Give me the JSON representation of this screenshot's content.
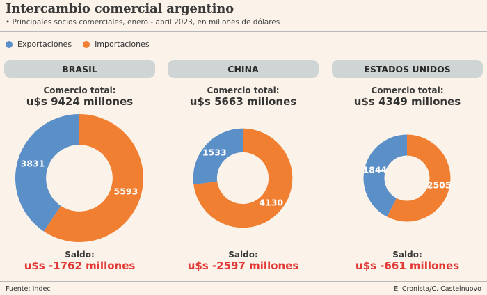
{
  "title": "Intercambio comercial argentino",
  "subtitle": "• Principales socios comerciales, enero - abril 2023, en millones de dólares",
  "colors": {
    "export": "#5b8fc7",
    "import": "#f07f32",
    "saldo": "#e23a36"
  },
  "chart_data": {
    "type": "pie",
    "variant": "donut",
    "legend": [
      "Exportaciones",
      "Importaciones"
    ],
    "total_label": "Comercio total:",
    "saldo_label": "Saldo:",
    "unit": "millones de dólares",
    "partners": [
      {
        "name": "BRASIL",
        "total": "u$s 9424 millones",
        "exportaciones": 3831,
        "importaciones": 5593,
        "saldo": "u$s -1762 millones"
      },
      {
        "name": "CHINA",
        "total": "u$s 5663 millones",
        "exportaciones": 1533,
        "importaciones": 4130,
        "saldo": "u$s -2597 millones"
      },
      {
        "name": "ESTADOS UNIDOS",
        "total": "u$s 4349 millones",
        "exportaciones": 1844,
        "importaciones": 2505,
        "saldo": "u$s -661 millones"
      }
    ]
  },
  "footer": {
    "source": "Fuente: Indec",
    "credit": "El Cronista/C. Castelnuovo"
  }
}
